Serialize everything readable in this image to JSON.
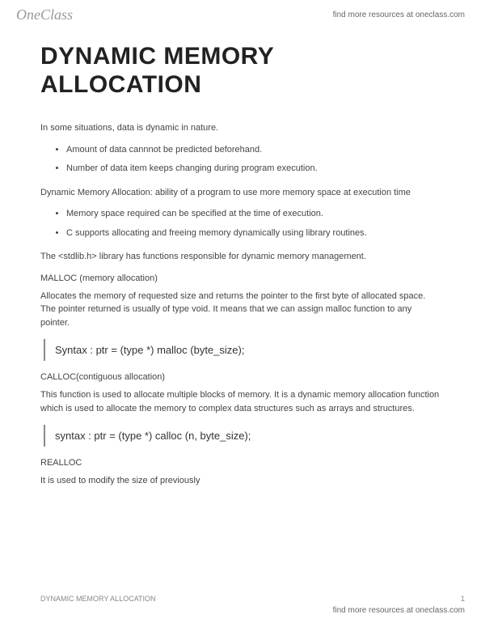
{
  "header": {
    "logo_text": "OneClass",
    "link_text": "find more resources at oneclass.com"
  },
  "doc": {
    "title": "DYNAMIC MEMORY ALLOCATION",
    "intro": "In some situations, data is dynamic in nature.",
    "intro_bullets": [
      "Amount of data cannnot be predicted beforehand.",
      "Number of data item keeps changing during program execution."
    ],
    "def_para": "Dynamic Memory Allocation: ability of a program to use more memory space at execution time",
    "def_bullets": [
      "Memory space required can be specified at the time of execution.",
      "C supports allocating and freeing memory dynamically using library routines."
    ],
    "stdlib_para": "The <stdlib.h> library has functions responsible for dynamic memory management.",
    "malloc_label": "MALLOC (memory allocation)",
    "malloc_para": "Allocates the memory of requested size and returns the pointer to the first byte of allocated space. The pointer returned is usually of type void. It means that we can assign malloc function to any pointer.",
    "malloc_syntax": "Syntax   : ptr = (type *) malloc (byte_size);",
    "calloc_label": "CALLOC(contiguous allocation)",
    "calloc_para": "This function is used to allocate multiple blocks of memory. It is a dynamic memory allocation function which is used to allocate the memory to complex data structures such as arrays and structures.",
    "calloc_syntax": "syntax : ptr = (type *) calloc (n, byte_size);",
    "realloc_label": "REALLOC",
    "realloc_para": "It is used to modify the size of previously"
  },
  "footer": {
    "doc_name": "DYNAMIC MEMORY ALLOCATION",
    "page_num": "1",
    "link_text": "find more resources at oneclass.com"
  }
}
